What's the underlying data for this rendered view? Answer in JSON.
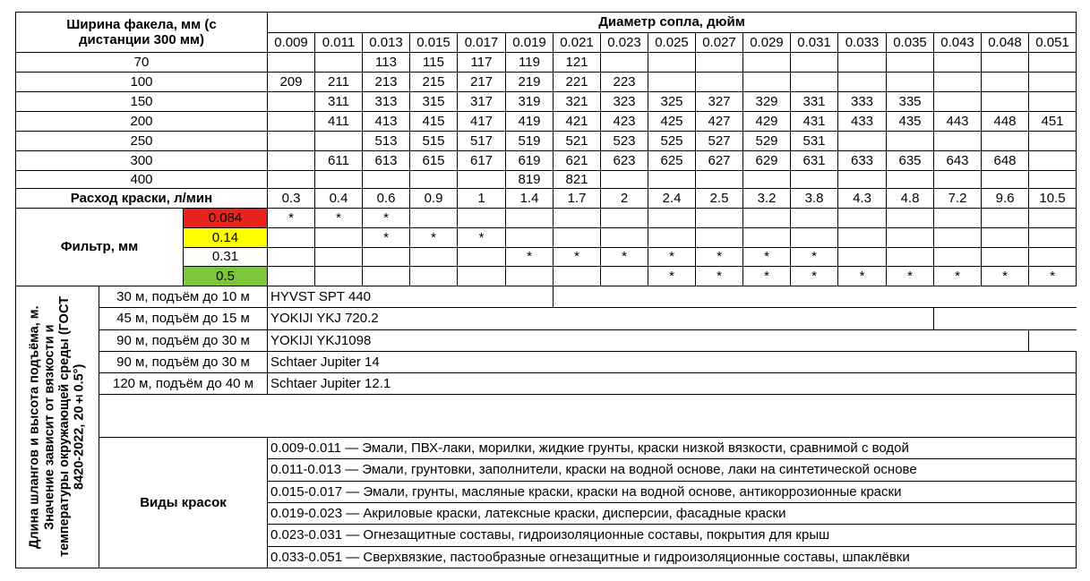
{
  "header": {
    "width_label": "Ширина факела, мм (с дистанции 300 мм)",
    "diameter_label": "Диаметр сопла, дюйм"
  },
  "diameters": [
    "0.009",
    "0.011",
    "0.013",
    "0.015",
    "0.017",
    "0.019",
    "0.021",
    "0.023",
    "0.025",
    "0.027",
    "0.029",
    "0.031",
    "0.033",
    "0.035",
    "0.043",
    "0.048",
    "0.051"
  ],
  "widths": [
    {
      "width": 70,
      "values": [
        null,
        null,
        113,
        115,
        117,
        119,
        121,
        null,
        null,
        null,
        null,
        null,
        null,
        null,
        null,
        null,
        null
      ]
    },
    {
      "width": 100,
      "values": [
        209,
        211,
        213,
        215,
        217,
        219,
        221,
        223,
        null,
        null,
        null,
        null,
        null,
        null,
        null,
        null,
        null
      ]
    },
    {
      "width": 150,
      "values": [
        null,
        311,
        313,
        315,
        317,
        319,
        321,
        323,
        325,
        327,
        329,
        331,
        333,
        335,
        null,
        null,
        null
      ]
    },
    {
      "width": 200,
      "values": [
        null,
        411,
        413,
        415,
        417,
        419,
        421,
        423,
        425,
        427,
        429,
        431,
        433,
        435,
        443,
        448,
        451
      ]
    },
    {
      "width": 250,
      "values": [
        null,
        null,
        513,
        515,
        517,
        519,
        521,
        523,
        525,
        527,
        529,
        531,
        null,
        null,
        null,
        null,
        null
      ]
    },
    {
      "width": 300,
      "values": [
        null,
        611,
        613,
        615,
        617,
        619,
        621,
        623,
        625,
        627,
        629,
        631,
        633,
        635,
        643,
        648,
        null
      ]
    },
    {
      "width": 400,
      "values": [
        null,
        null,
        null,
        null,
        null,
        819,
        821,
        null,
        null,
        null,
        null,
        null,
        null,
        null,
        null,
        null,
        null
      ]
    }
  ],
  "flow": {
    "label": "Расход краски, л/мин",
    "values": [
      0.3,
      0.4,
      0.6,
      0.9,
      1,
      1.4,
      1.7,
      2,
      2.4,
      2.5,
      3.2,
      3.8,
      4.3,
      4.8,
      7.2,
      9.6,
      10.5
    ]
  },
  "filter": {
    "label": "Фильтр, мм",
    "rows": [
      {
        "size": 0.084,
        "color": "#e8231b",
        "marks": [
          "*",
          "*",
          "*",
          null,
          null,
          null,
          null,
          null,
          null,
          null,
          null,
          null,
          null,
          null,
          null,
          null,
          null
        ]
      },
      {
        "size": 0.14,
        "color": "#ffff00",
        "marks": [
          null,
          null,
          "*",
          "*",
          "*",
          null,
          null,
          null,
          null,
          null,
          null,
          null,
          null,
          null,
          null,
          null,
          null
        ]
      },
      {
        "size": 0.31,
        "color": "#ffffff",
        "marks": [
          null,
          null,
          null,
          null,
          null,
          "*",
          "*",
          "*",
          "*",
          "*",
          "*",
          "*",
          null,
          null,
          null,
          null,
          null
        ]
      },
      {
        "size": 0.5,
        "color": "#7cc63a",
        "marks": [
          null,
          null,
          null,
          null,
          null,
          null,
          null,
          null,
          "*",
          "*",
          "*",
          "*",
          "*",
          "*",
          "*",
          "*",
          "*"
        ]
      }
    ]
  },
  "hoses": {
    "note": "Длина шлангов и высота подъёма, м. Значение зависит от вязкости и температуры окружающей среды (ГОСТ 8420-2022, 20±0.5°)",
    "rows": [
      {
        "label": "30 м, подъём до 10 м",
        "product": "HYVST SPT 440"
      },
      {
        "label": "45 м, подъём до 15 м",
        "product": "YOKIJI YKJ 720.2"
      },
      {
        "label": "90 м, подъём до 30 м",
        "product": "YOKIJI YKJ1098"
      },
      {
        "label": "90 м, подъём до 30 м",
        "product": "Schtaer Jupiter 14"
      },
      {
        "label": "120 м, подъём до 40 м",
        "product": "Schtaer Jupiter 12.1"
      }
    ]
  },
  "paints": {
    "label": "Виды красок",
    "rows": [
      "0.009-0.011 — Эмали, ПВХ-лаки, морилки, жидкие грунты, краски низкой вязкости, сравнимой с водой",
      "0.011-0.013 — Эмали, грунтовки, заполнители, краски на водной основе, лаки на синтетической основе",
      "0.015-0.017 — Эмали, грунты, масляные краски, краски на водной основе, антикоррозионные краски",
      "0.019-0.023 — Акриловые краски, латексные краски, дисперсии, фасадные краски",
      "0.023-0.031 — Огнезащитные составы, гидроизоляционные составы, покрытия для крыш",
      "0.033-0.051 — Сверхвязкие, пастообразные огнезащитные и гидроизоляционные составы, шпаклёвки"
    ]
  }
}
